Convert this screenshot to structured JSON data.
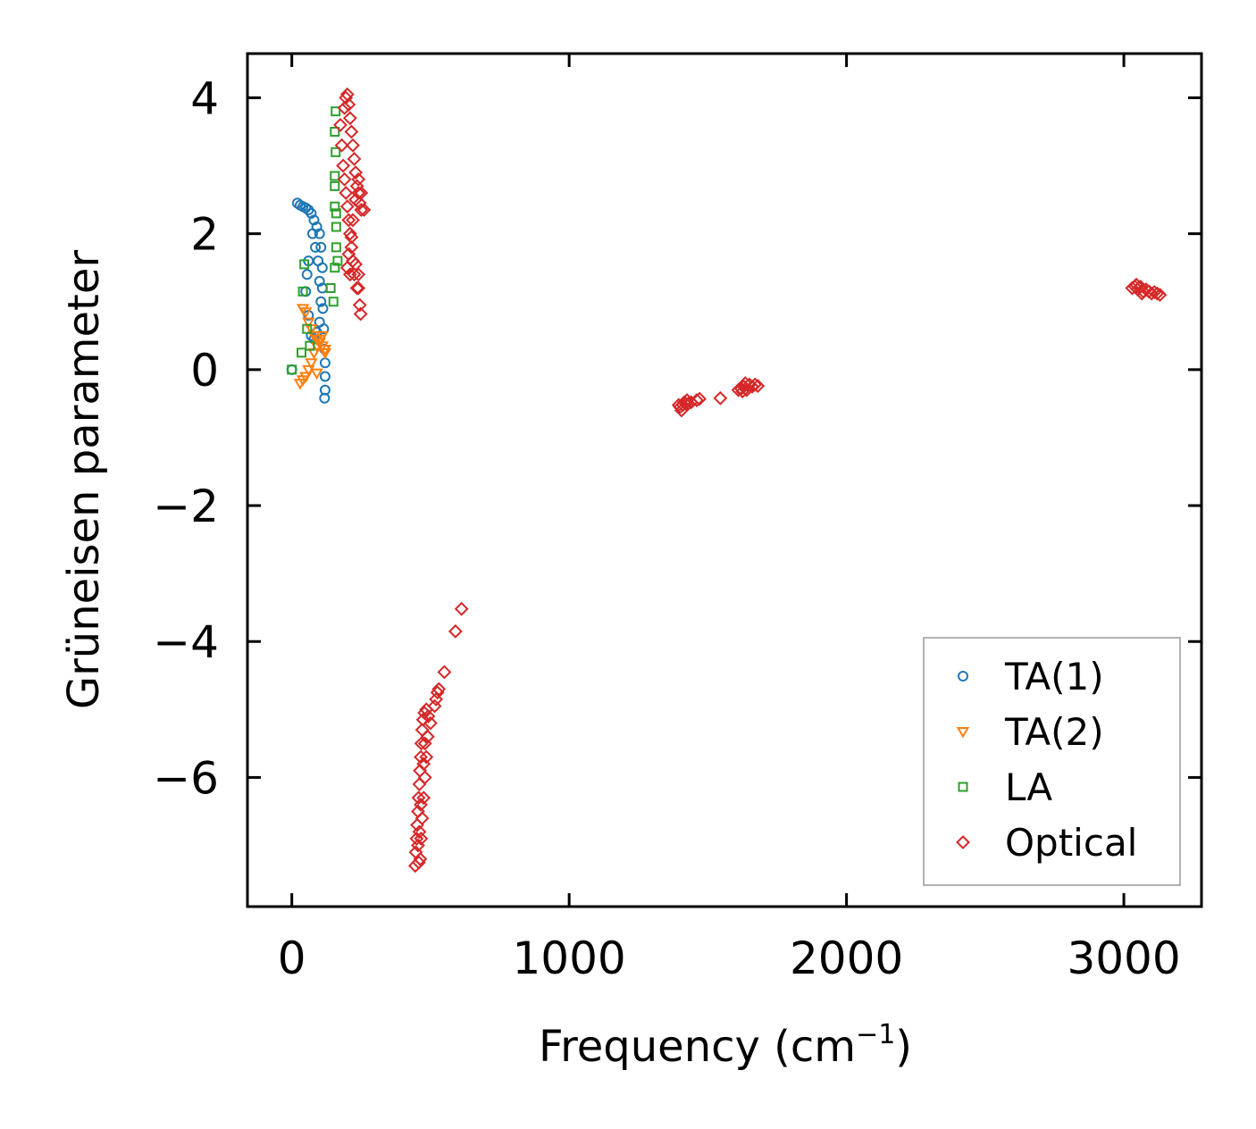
{
  "chart_data": {
    "type": "scatter",
    "title": "",
    "xlabel": "Frequency (cm",
    "xlabel_sup": "−1",
    "xlabel_close": ")",
    "ylabel": "Grüneisen parameter",
    "xlim": [
      -160,
      3280
    ],
    "ylim": [
      -7.9,
      4.65
    ],
    "xticks": [
      0,
      1000,
      2000,
      3000
    ],
    "xtick_labels": [
      "0",
      "1000",
      "2000",
      "3000"
    ],
    "yticks": [
      4,
      2,
      0,
      -2,
      -4,
      -6
    ],
    "ytick_labels": [
      "4",
      "2",
      "0",
      "−2",
      "−4",
      "−6"
    ],
    "grid": false,
    "legend_position": "lower-right",
    "series": [
      {
        "name": "TA(1)",
        "marker": "circle",
        "color": "#1f77b4",
        "points": [
          [
            0,
            0
          ],
          [
            20,
            2.45
          ],
          [
            30,
            2.42
          ],
          [
            40,
            2.4
          ],
          [
            50,
            2.38
          ],
          [
            60,
            2.35
          ],
          [
            70,
            2.3
          ],
          [
            80,
            2.2
          ],
          [
            90,
            2.1
          ],
          [
            100,
            2.0
          ],
          [
            105,
            1.8
          ],
          [
            110,
            1.5
          ],
          [
            110,
            1.2
          ],
          [
            112,
            0.9
          ],
          [
            115,
            0.6
          ],
          [
            118,
            0.3
          ],
          [
            120,
            0.1
          ],
          [
            120,
            -0.1
          ],
          [
            120,
            -0.3
          ],
          [
            118,
            -0.42
          ],
          [
            60,
            1.6
          ],
          [
            55,
            1.4
          ],
          [
            50,
            1.15
          ],
          [
            60,
            0.8
          ],
          [
            70,
            0.5
          ],
          [
            80,
            0.45
          ],
          [
            90,
            0.55
          ],
          [
            100,
            0.7
          ],
          [
            105,
            1.0
          ],
          [
            100,
            1.3
          ],
          [
            95,
            1.6
          ],
          [
            85,
            1.8
          ],
          [
            75,
            2.0
          ]
        ]
      },
      {
        "name": "TA(2)",
        "marker": "triangle-down",
        "color": "#ff7f0e",
        "points": [
          [
            30,
            -0.2
          ],
          [
            40,
            -0.15
          ],
          [
            50,
            -0.1
          ],
          [
            60,
            0.0
          ],
          [
            70,
            0.1
          ],
          [
            80,
            0.25
          ],
          [
            90,
            0.35
          ],
          [
            100,
            0.45
          ],
          [
            110,
            0.35
          ],
          [
            120,
            0.25
          ],
          [
            40,
            0.9
          ],
          [
            50,
            0.85
          ],
          [
            60,
            0.7
          ],
          [
            70,
            0.6
          ],
          [
            80,
            0.5
          ],
          [
            90,
            0.45
          ],
          [
            100,
            0.4
          ],
          [
            110,
            0.5
          ],
          [
            120,
            0.3
          ],
          [
            90,
            -0.05
          ]
        ]
      },
      {
        "name": "LA",
        "marker": "square",
        "color": "#2ca02c",
        "points": [
          [
            0,
            0
          ],
          [
            35,
            0.25
          ],
          [
            40,
            1.15
          ],
          [
            45,
            1.55
          ],
          [
            55,
            0.6
          ],
          [
            65,
            0.35
          ],
          [
            140,
            1.2
          ],
          [
            150,
            1.0
          ],
          [
            155,
            1.5
          ],
          [
            160,
            1.8
          ],
          [
            160,
            2.1
          ],
          [
            155,
            2.4
          ],
          [
            155,
            2.7
          ],
          [
            155,
            2.85
          ],
          [
            158,
            3.2
          ],
          [
            155,
            3.5
          ],
          [
            158,
            3.8
          ],
          [
            165,
            1.6
          ],
          [
            160,
            2.3
          ]
        ]
      },
      {
        "name": "Optical",
        "marker": "diamond",
        "color": "#d62728",
        "points": [
          [
            175,
            3.6
          ],
          [
            180,
            3.3
          ],
          [
            185,
            3.0
          ],
          [
            190,
            2.8
          ],
          [
            195,
            2.6
          ],
          [
            200,
            2.4
          ],
          [
            205,
            2.2
          ],
          [
            210,
            2.0
          ],
          [
            215,
            1.8
          ],
          [
            220,
            1.6
          ],
          [
            225,
            1.4
          ],
          [
            235,
            1.2
          ],
          [
            245,
            0.95
          ],
          [
            248,
            0.82
          ],
          [
            190,
            3.85
          ],
          [
            195,
            4.0
          ],
          [
            200,
            4.05
          ],
          [
            205,
            3.9
          ],
          [
            210,
            3.7
          ],
          [
            215,
            3.5
          ],
          [
            220,
            3.3
          ],
          [
            225,
            3.1
          ],
          [
            230,
            2.9
          ],
          [
            235,
            2.7
          ],
          [
            240,
            2.6
          ],
          [
            245,
            2.45
          ],
          [
            250,
            2.35
          ],
          [
            230,
            2.5
          ],
          [
            220,
            2.2
          ],
          [
            215,
            1.95
          ],
          [
            205,
            1.7
          ],
          [
            200,
            1.5
          ],
          [
            230,
            1.55
          ],
          [
            240,
            1.4
          ],
          [
            260,
            2.35
          ],
          [
            250,
            2.6
          ],
          [
            240,
            2.8
          ],
          [
            210,
            1.4
          ],
          [
            240,
            1.2
          ],
          [
            445,
            -7.3
          ],
          [
            447,
            -7.1
          ],
          [
            450,
            -6.9
          ],
          [
            452,
            -6.7
          ],
          [
            455,
            -6.5
          ],
          [
            457,
            -6.3
          ],
          [
            460,
            -6.1
          ],
          [
            462,
            -5.9
          ],
          [
            465,
            -5.7
          ],
          [
            467,
            -5.5
          ],
          [
            470,
            -5.3
          ],
          [
            473,
            -5.15
          ],
          [
            478,
            -5.05
          ],
          [
            485,
            -5.0
          ],
          [
            492,
            -5.1
          ],
          [
            490,
            -5.4
          ],
          [
            485,
            -5.7
          ],
          [
            480,
            -6.0
          ],
          [
            475,
            -6.3
          ],
          [
            470,
            -6.6
          ],
          [
            466,
            -6.9
          ],
          [
            463,
            -7.2
          ],
          [
            458,
            -7.25
          ],
          [
            455,
            -7.0
          ],
          [
            460,
            -6.8
          ],
          [
            465,
            -6.4
          ],
          [
            475,
            -5.8
          ],
          [
            480,
            -5.5
          ],
          [
            500,
            -5.2
          ],
          [
            515,
            -4.95
          ],
          [
            520,
            -4.85
          ],
          [
            525,
            -4.75
          ],
          [
            530,
            -4.7
          ],
          [
            550,
            -4.45
          ],
          [
            590,
            -3.85
          ],
          [
            612,
            -3.52
          ],
          [
            1395,
            -0.52
          ],
          [
            1400,
            -0.55
          ],
          [
            1405,
            -0.6
          ],
          [
            1410,
            -0.52
          ],
          [
            1415,
            -0.48
          ],
          [
            1420,
            -0.5
          ],
          [
            1425,
            -0.45
          ],
          [
            1430,
            -0.5
          ],
          [
            1440,
            -0.48
          ],
          [
            1460,
            -0.45
          ],
          [
            1470,
            -0.43
          ],
          [
            1545,
            -0.42
          ],
          [
            1610,
            -0.3
          ],
          [
            1620,
            -0.28
          ],
          [
            1630,
            -0.25
          ],
          [
            1640,
            -0.3
          ],
          [
            1650,
            -0.22
          ],
          [
            1660,
            -0.25
          ],
          [
            1670,
            -0.22
          ],
          [
            1680,
            -0.24
          ],
          [
            1635,
            -0.2
          ],
          [
            1625,
            -0.32
          ],
          [
            3030,
            1.2
          ],
          [
            3040,
            1.22
          ],
          [
            3050,
            1.18
          ],
          [
            3060,
            1.22
          ],
          [
            3070,
            1.15
          ],
          [
            3080,
            1.18
          ],
          [
            3090,
            1.15
          ],
          [
            3100,
            1.12
          ],
          [
            3110,
            1.14
          ],
          [
            3120,
            1.12
          ],
          [
            3130,
            1.1
          ],
          [
            3045,
            1.25
          ],
          [
            3065,
            1.12
          ]
        ]
      }
    ]
  }
}
